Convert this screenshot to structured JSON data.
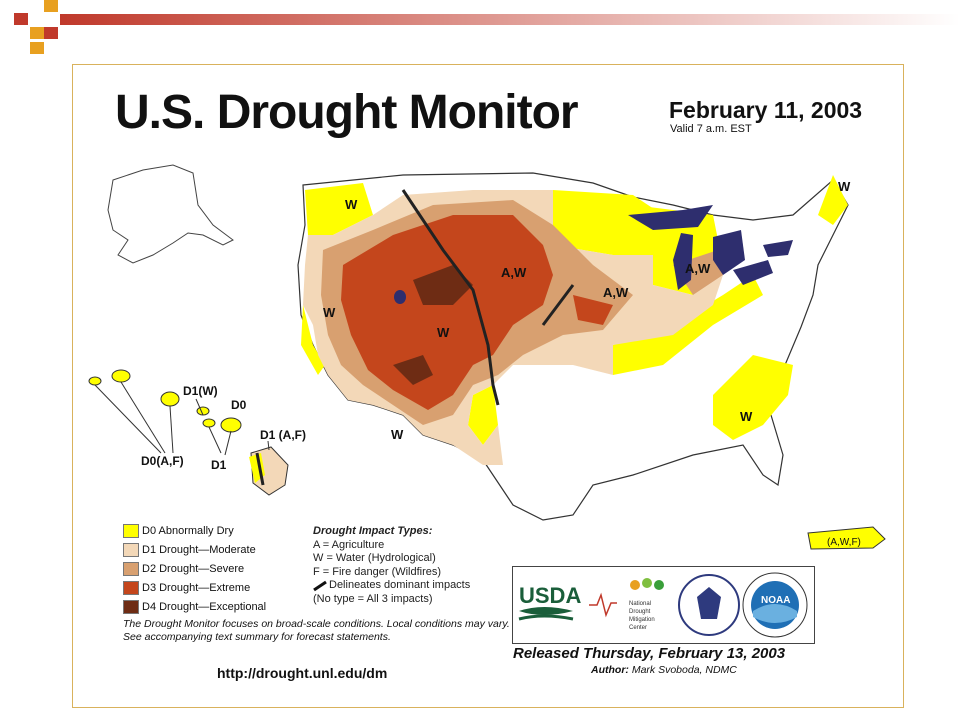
{
  "title": "U.S. Drought Monitor",
  "date": "February 11, 2003",
  "valid": "Valid 7 a.m. EST",
  "map_labels": {
    "w_northwest": "W",
    "w_maine": "W",
    "aw_plains": "A,W",
    "aw_iowa": "A,W",
    "aw_michigan": "A,W",
    "w_nevada": "W",
    "w_colorado": "W",
    "w_southwest": "W",
    "w_southeast": "W",
    "hawaii_d1w": "D1(W)",
    "hawaii_d0": "D0",
    "hawaii_d1af": "D1 (A,F)",
    "hawaii_d0af": "D0(A,F)",
    "hawaii_d1": "D1",
    "puerto_rico": "(A,W,F)"
  },
  "legend": [
    {
      "code": "D0",
      "label": "D0 Abnormally Dry",
      "color": "#ffff00"
    },
    {
      "code": "D1",
      "label": "D1 Drought—Moderate",
      "color": "#fcd37f"
    },
    {
      "code": "D2",
      "label": "D2 Drought—Severe",
      "color": "#e0a070"
    },
    {
      "code": "D3",
      "label": "D3 Drought—Extreme",
      "color": "#c4461c"
    },
    {
      "code": "D4",
      "label": "D4 Drought—Exceptional",
      "color": "#6e2c14"
    }
  ],
  "impact": {
    "title": "Drought Impact Types:",
    "lines": [
      "A = Agriculture",
      "W = Water (Hydrological)",
      "F = Fire danger (Wildfires)",
      "Delineates dominant impacts",
      "(No type = All 3 impacts)"
    ]
  },
  "footnote": "The Drought Monitor focuses on broad-scale conditions. Local conditions may vary. See accompanying text summary for forecast statements.",
  "url": "http://drought.unl.edu/dm",
  "logos": {
    "usda": "USDA",
    "ndmc_line1": "National",
    "ndmc_line2": "Drought",
    "ndmc_line3": "Mitigation",
    "ndmc_line4": "Center",
    "noaa": "NOAA"
  },
  "released": "Released Thursday, February 13, 2003",
  "author_label": "Author:",
  "author_name": "Mark Svoboda, NDMC",
  "colors": {
    "d0": "#ffff00",
    "d1": "#f3d8b8",
    "d2": "#d8a070",
    "d3": "#c4461c",
    "d4": "#6e2c14",
    "water": "#2e2e6e",
    "deco_red": "#c0392b",
    "deco_gold": "#e8a020"
  }
}
